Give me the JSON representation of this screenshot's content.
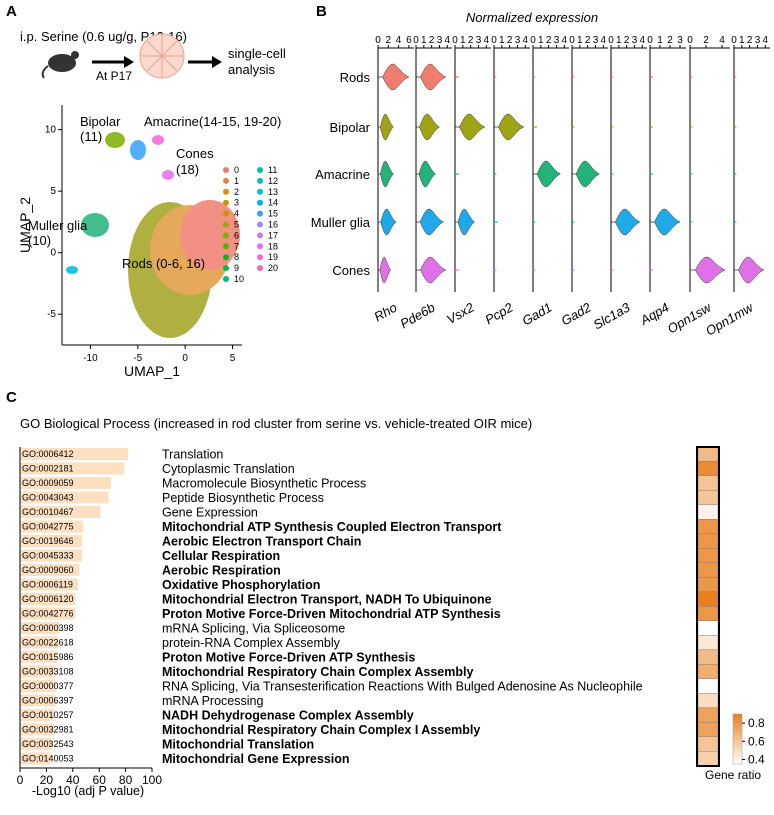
{
  "panel_labels": [
    "A",
    "B",
    "C"
  ],
  "schematic": {
    "treatment": "i.p. Serine (0.6 ug/g, P12-16)",
    "timepoint": "At P17",
    "analysis": [
      "single-cell",
      "analysis"
    ]
  },
  "chart_data": [
    {
      "type": "scatter",
      "xlabel": "UMAP_1",
      "ylabel": "UMAP_2",
      "xlim": [
        -13,
        6
      ],
      "ylim": [
        -7.5,
        12
      ],
      "xticks": [
        -10,
        -5,
        0,
        5
      ],
      "yticks": [
        -5,
        0,
        5,
        10
      ],
      "annotations": [
        "Bipolar",
        "(11)",
        "Amacrine(14-15, 19-20)",
        "Cones",
        "(18)",
        "Muller glia",
        "(10)",
        "Rods (0-6, 16)"
      ],
      "series": [
        {
          "name": "0",
          "color": "#F8766D"
        },
        {
          "name": "1",
          "color": "#EE8042"
        },
        {
          "name": "2",
          "color": "#E18A00"
        },
        {
          "name": "3",
          "color": "#CD9600"
        },
        {
          "name": "4",
          "color": "#B79F00"
        },
        {
          "name": "5",
          "color": "#9DA700"
        },
        {
          "name": "6",
          "color": "#7CAE00"
        },
        {
          "name": "7",
          "color": "#4DB400"
        },
        {
          "name": "8",
          "color": "#00B81F"
        },
        {
          "name": "9",
          "color": "#00BB59"
        },
        {
          "name": "10",
          "color": "#00BE82"
        },
        {
          "name": "11",
          "color": "#00C0A5"
        },
        {
          "name": "12",
          "color": "#00BFC4"
        },
        {
          "name": "13",
          "color": "#00B9E3"
        },
        {
          "name": "14",
          "color": "#00B0F6"
        },
        {
          "name": "15",
          "color": "#35A2FF"
        },
        {
          "name": "16",
          "color": "#9590FF"
        },
        {
          "name": "17",
          "color": "#C77CFF"
        },
        {
          "name": "18",
          "color": "#E76BF3"
        },
        {
          "name": "19",
          "color": "#FA62DB"
        },
        {
          "name": "20",
          "color": "#FF62BC"
        }
      ]
    },
    {
      "type": "violin",
      "title": "Normalized expression",
      "genes": [
        {
          "name": "Rho",
          "xlim": [
            0,
            7
          ],
          "xticks": [
            0,
            2,
            4,
            6
          ]
        },
        {
          "name": "Pde6b",
          "xlim": [
            0,
            4.6
          ],
          "xticks": [
            0,
            1,
            2,
            3,
            4
          ]
        },
        {
          "name": "Vsx2",
          "xlim": [
            0,
            4.6
          ],
          "xticks": [
            0,
            1,
            2,
            3,
            4
          ]
        },
        {
          "name": "Pcp2",
          "xlim": [
            0,
            4.6
          ],
          "xticks": [
            0,
            1,
            2,
            3,
            4
          ]
        },
        {
          "name": "Gad1",
          "xlim": [
            0,
            4.6
          ],
          "xticks": [
            0,
            1,
            2,
            3,
            4
          ]
        },
        {
          "name": "Gad2",
          "xlim": [
            0,
            4.6
          ],
          "xticks": [
            0,
            1,
            2,
            3,
            4
          ]
        },
        {
          "name": "Slc1a3",
          "xlim": [
            0,
            4.6
          ],
          "xticks": [
            0,
            1,
            2,
            3,
            4
          ]
        },
        {
          "name": "Aqp4",
          "xlim": [
            0,
            3.6
          ],
          "xticks": [
            0,
            1,
            2,
            3
          ]
        },
        {
          "name": "Opn1sw",
          "xlim": [
            0,
            5
          ],
          "xticks": [
            0,
            2,
            4
          ]
        },
        {
          "name": "Opn1mw",
          "xlim": [
            0,
            4.6
          ],
          "xticks": [
            0,
            1,
            2,
            3,
            4
          ]
        }
      ],
      "series": [
        {
          "name": "Rods",
          "color": "#F07D6D",
          "values": [
            6,
            3.8,
            0.5,
            0.3,
            0.3,
            0.3,
            0.3,
            0.3,
            0.3,
            0.3
          ]
        },
        {
          "name": "Bipolar",
          "color": "#9EA415",
          "values": [
            3,
            3,
            3.8,
            3.8,
            0.5,
            0.3,
            0.3,
            0.3,
            0.3,
            0.3
          ]
        },
        {
          "name": "Amacrine",
          "color": "#22B27A",
          "values": [
            3,
            2.5,
            0.5,
            0.3,
            3.5,
            3.5,
            0.3,
            0.3,
            0.3,
            0.3
          ]
        },
        {
          "name": "Muller glia",
          "color": "#1FA9E8",
          "values": [
            3.5,
            3.5,
            2.5,
            0.5,
            0.3,
            0.3,
            3.7,
            3,
            0.3,
            0.3
          ]
        },
        {
          "name": "Cones",
          "color": "#E070E8",
          "values": [
            2.5,
            3.8,
            0.5,
            0.3,
            0.3,
            0.3,
            0.3,
            0.3,
            4.4,
            3.8
          ]
        }
      ]
    },
    {
      "type": "bar",
      "title": "GO Biological Process (increased in rod cluster from serine vs. vehicle-treated OIR mice)",
      "xlabel": "-Log10 (adj P value)",
      "xlim": [
        0,
        100
      ],
      "xticks": [
        0,
        20,
        40,
        60,
        80,
        100
      ],
      "color": "#FDE0C2",
      "ids": [
        "GO:0006412",
        "GO:0002181",
        "GO:0009059",
        "GO:0043043",
        "GO:0010467",
        "GO:0042775",
        "GO:0019646",
        "GO:0045333",
        "GO:0009060",
        "GO:0006119",
        "GO:0006120",
        "GO:0042776",
        "GO:0000398",
        "GO:0022618",
        "GO:0015986",
        "GO:0033108",
        "GO:0000377",
        "GO:0006397",
        "GO:0010257",
        "GO:0032981",
        "GO:0032543",
        "GO:0140053"
      ],
      "categories": [
        "Translation",
        "Cytoplasmic Translation",
        "Macromolecule Biosynthetic Process",
        "Peptide Biosynthetic Process",
        "Gene Expression",
        "Mitochondrial ATP Synthesis Coupled Electron Transport",
        "Aerobic Electron Transport Chain",
        "Cellular Respiration",
        "Aerobic Respiration",
        "Oxidative Phosphorylation",
        "Mitochondrial Electron Transport, NADH To Ubiquinone",
        "Proton Motive Force-Driven Mitochondrial ATP Synthesis",
        "mRNA Splicing, Via Spliceosome",
        "protein-RNA Complex Assembly",
        "Proton Motive Force-Driven ATP Synthesis",
        "Mitochondrial Respiratory Chain Complex Assembly",
        "RNA Splicing, Via Transesterification Reactions With Bulged Adenosine As Nucleophile",
        "mRNA Processing",
        "NADH Dehydrogenase Complex Assembly",
        "Mitochondrial Respiratory Chain Complex I Assembly",
        "Mitochondrial Translation",
        "Mitochondrial Gene Expression"
      ],
      "bold": [
        false,
        false,
        false,
        false,
        false,
        true,
        true,
        true,
        true,
        true,
        true,
        true,
        false,
        false,
        true,
        true,
        false,
        false,
        true,
        true,
        true,
        true
      ],
      "values": [
        82,
        79,
        69,
        67,
        61,
        48,
        47,
        47,
        45,
        44,
        42,
        42,
        30,
        29,
        28,
        27,
        27,
        27,
        26,
        26,
        24,
        23
      ],
      "gene_ratio": {
        "label": "Gene ratio",
        "colorlim": [
          0.35,
          0.9
        ],
        "colors": [
          "#FFFFFF",
          "#E8801F"
        ],
        "ticks": [
          0.4,
          0.6,
          0.8
        ],
        "values": [
          0.65,
          0.85,
          0.6,
          0.6,
          0.4,
          0.8,
          0.8,
          0.8,
          0.8,
          0.8,
          0.9,
          0.8,
          0.35,
          0.45,
          0.65,
          0.7,
          0.35,
          0.5,
          0.75,
          0.75,
          0.6,
          0.55
        ]
      }
    }
  ]
}
